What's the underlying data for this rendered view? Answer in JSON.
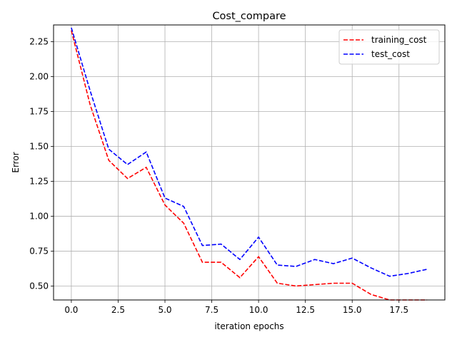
{
  "chart_data": {
    "type": "line",
    "title": "Cost_compare",
    "xlabel": "iteration epochs",
    "ylabel": "Error",
    "xlim": [
      -0.95,
      19.95
    ],
    "ylim": [
      0.4,
      2.37
    ],
    "grid": true,
    "legend_position": "top-right",
    "x_ticks": [
      0,
      2.5,
      5,
      7.5,
      10,
      12.5,
      15,
      17.5
    ],
    "x_tick_labels": [
      "0.0",
      "2.5",
      "5.0",
      "7.5",
      "10.0",
      "12.5",
      "15.0",
      "17.5"
    ],
    "y_ticks": [
      0.5,
      0.75,
      1.0,
      1.25,
      1.5,
      1.75,
      2.0,
      2.25
    ],
    "y_tick_labels": [
      "0.50",
      "0.75",
      "1.00",
      "1.25",
      "1.50",
      "1.75",
      "2.00",
      "2.25"
    ],
    "x": [
      0,
      1,
      2,
      3,
      4,
      5,
      6,
      7,
      8,
      9,
      10,
      11,
      12,
      13,
      14,
      15,
      16,
      17,
      18,
      19
    ],
    "series": [
      {
        "name": "training_cost",
        "color": "#ff0000",
        "style": "dashed",
        "values": [
          2.33,
          1.8,
          1.4,
          1.27,
          1.35,
          1.08,
          0.95,
          0.67,
          0.67,
          0.56,
          0.71,
          0.52,
          0.5,
          0.51,
          0.52,
          0.52,
          0.44,
          0.4,
          0.4,
          0.4
        ]
      },
      {
        "name": "test_cost",
        "color": "#0000ff",
        "style": "dashed",
        "values": [
          2.35,
          1.9,
          1.48,
          1.37,
          1.46,
          1.13,
          1.07,
          0.79,
          0.8,
          0.69,
          0.85,
          0.65,
          0.64,
          0.69,
          0.66,
          0.7,
          0.63,
          0.57,
          0.59,
          0.62
        ]
      }
    ]
  }
}
